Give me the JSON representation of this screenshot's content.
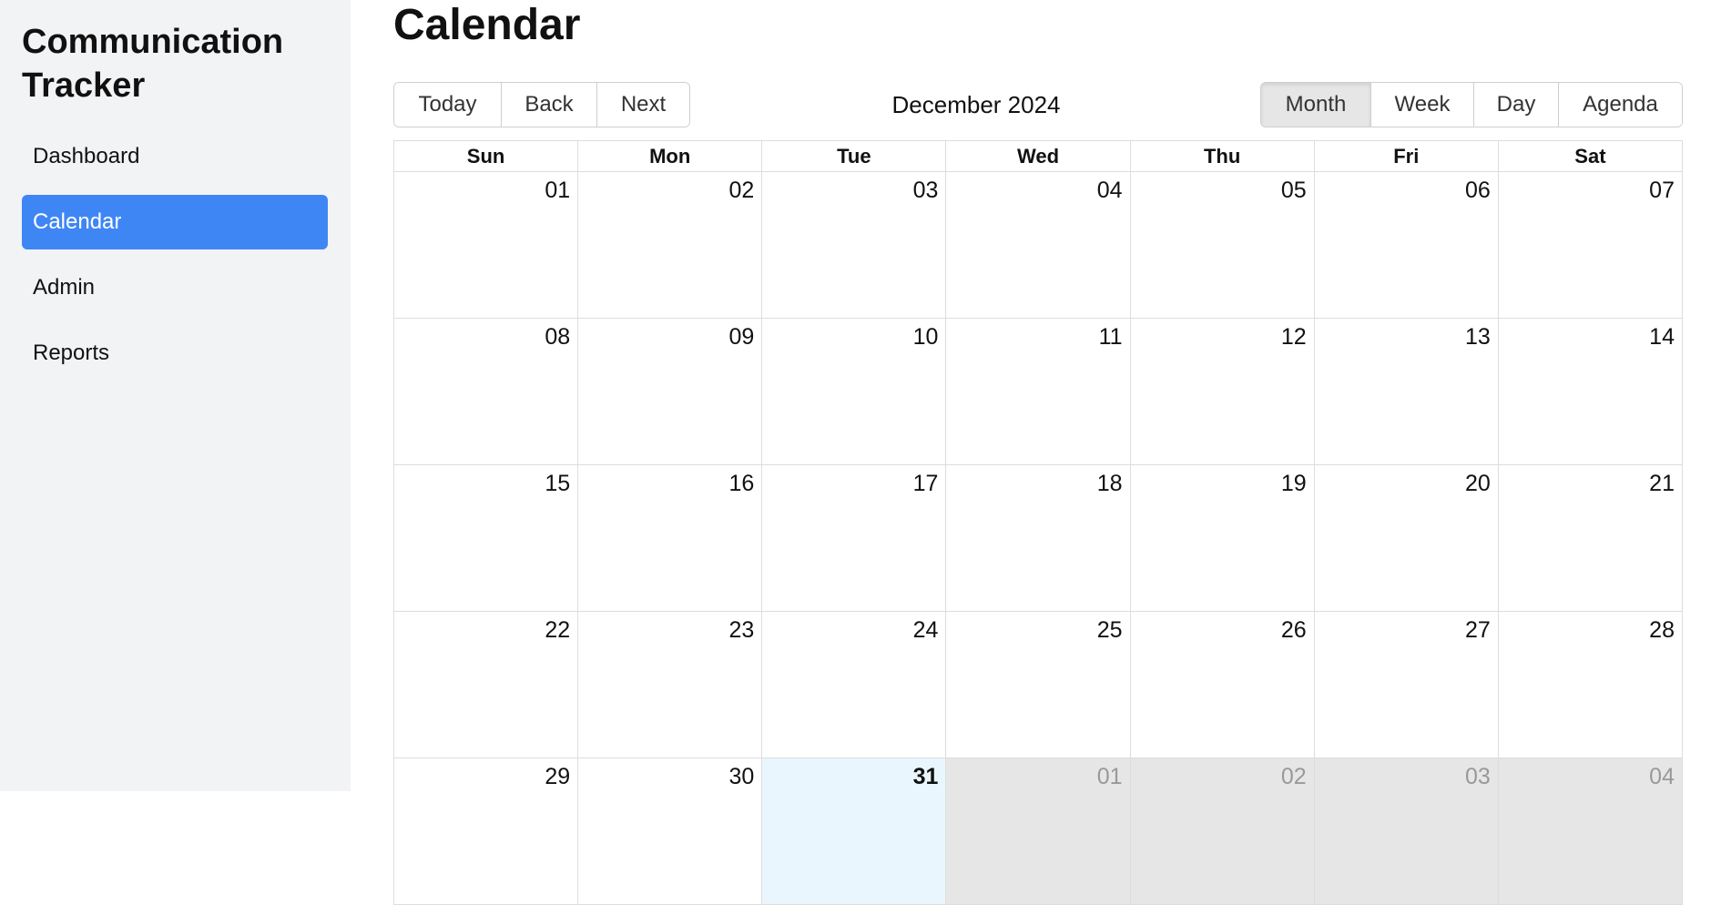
{
  "sidebar": {
    "title_line1": "Communication",
    "title_line2": "Tracker",
    "items": [
      {
        "label": "Dashboard",
        "active": false
      },
      {
        "label": "Calendar",
        "active": true
      },
      {
        "label": "Admin",
        "active": false
      },
      {
        "label": "Reports",
        "active": false
      }
    ]
  },
  "main": {
    "title": "Calendar",
    "toolbar": {
      "today_label": "Today",
      "back_label": "Back",
      "next_label": "Next",
      "month_label": "December 2024",
      "views": [
        "Month",
        "Week",
        "Day",
        "Agenda"
      ],
      "active_view": "Month"
    },
    "calendar": {
      "weekdays": [
        "Sun",
        "Mon",
        "Tue",
        "Wed",
        "Thu",
        "Fri",
        "Sat"
      ],
      "weeks": [
        [
          "01",
          "02",
          "03",
          "04",
          "05",
          "06",
          "07"
        ],
        [
          "08",
          "09",
          "10",
          "11",
          "12",
          "13",
          "14"
        ],
        [
          "15",
          "16",
          "17",
          "18",
          "19",
          "20",
          "21"
        ],
        [
          "22",
          "23",
          "24",
          "25",
          "26",
          "27",
          "28"
        ],
        [
          "29",
          "30",
          "31",
          "01",
          "02",
          "03",
          "04"
        ]
      ],
      "today": "31",
      "colors": {
        "accent": "#3f86f5",
        "today_bg": "#eaf6fd",
        "off_range_bg": "#e6e6e6",
        "sidebar_bg": "#f2f3f5"
      }
    }
  }
}
